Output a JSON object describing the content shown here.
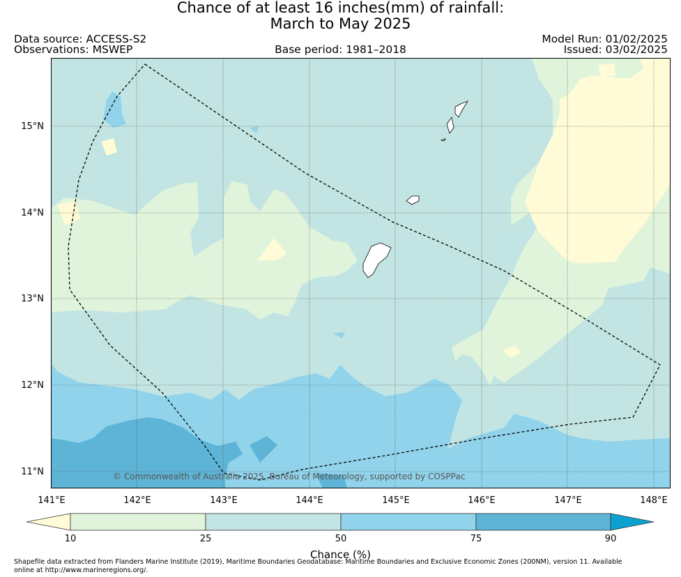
{
  "title": {
    "line1": "Chance of at least 16 inches(mm) of rainfall:",
    "line2": "March to May 2025"
  },
  "header": {
    "data_source": "Data source: ACCESS-S2",
    "observations": "Observations: MSWEP",
    "base_period": "Base period: 1981–2018",
    "model_run": "Model Run: 01/02/2025",
    "issued": "Issued: 03/02/2025"
  },
  "map": {
    "lat_labels": [
      "15°N",
      "14°N",
      "13°N",
      "12°N",
      "11°N"
    ],
    "lon_labels": [
      "141°E",
      "142°E",
      "143°E",
      "144°E",
      "145°E",
      "146°E",
      "147°E",
      "148°E"
    ],
    "copyright": "© Commonwealth of Australia 2025, Bureau of Meteorology, supported by COSPPac",
    "colors": {
      "lt10": "#fffbd6",
      "10-25": "#e0f4db",
      "25-50": "#c2e4e3",
      "50-75": "#90d3ea",
      "75-90": "#5eb4d6",
      "gt90": "#0ba2d2"
    }
  },
  "colorbar": {
    "ticks": [
      "10",
      "25",
      "50",
      "75",
      "90"
    ],
    "label": "Chance (%)"
  },
  "footnote": "Shapefile data extracted from Flanders Marine Institute (2019), Maritime Boundaries Geodatabase: Maritime Boundaries and Exclusive Economic Zones (200NM), version 11. Available online at http://www.marineregions.org/."
}
